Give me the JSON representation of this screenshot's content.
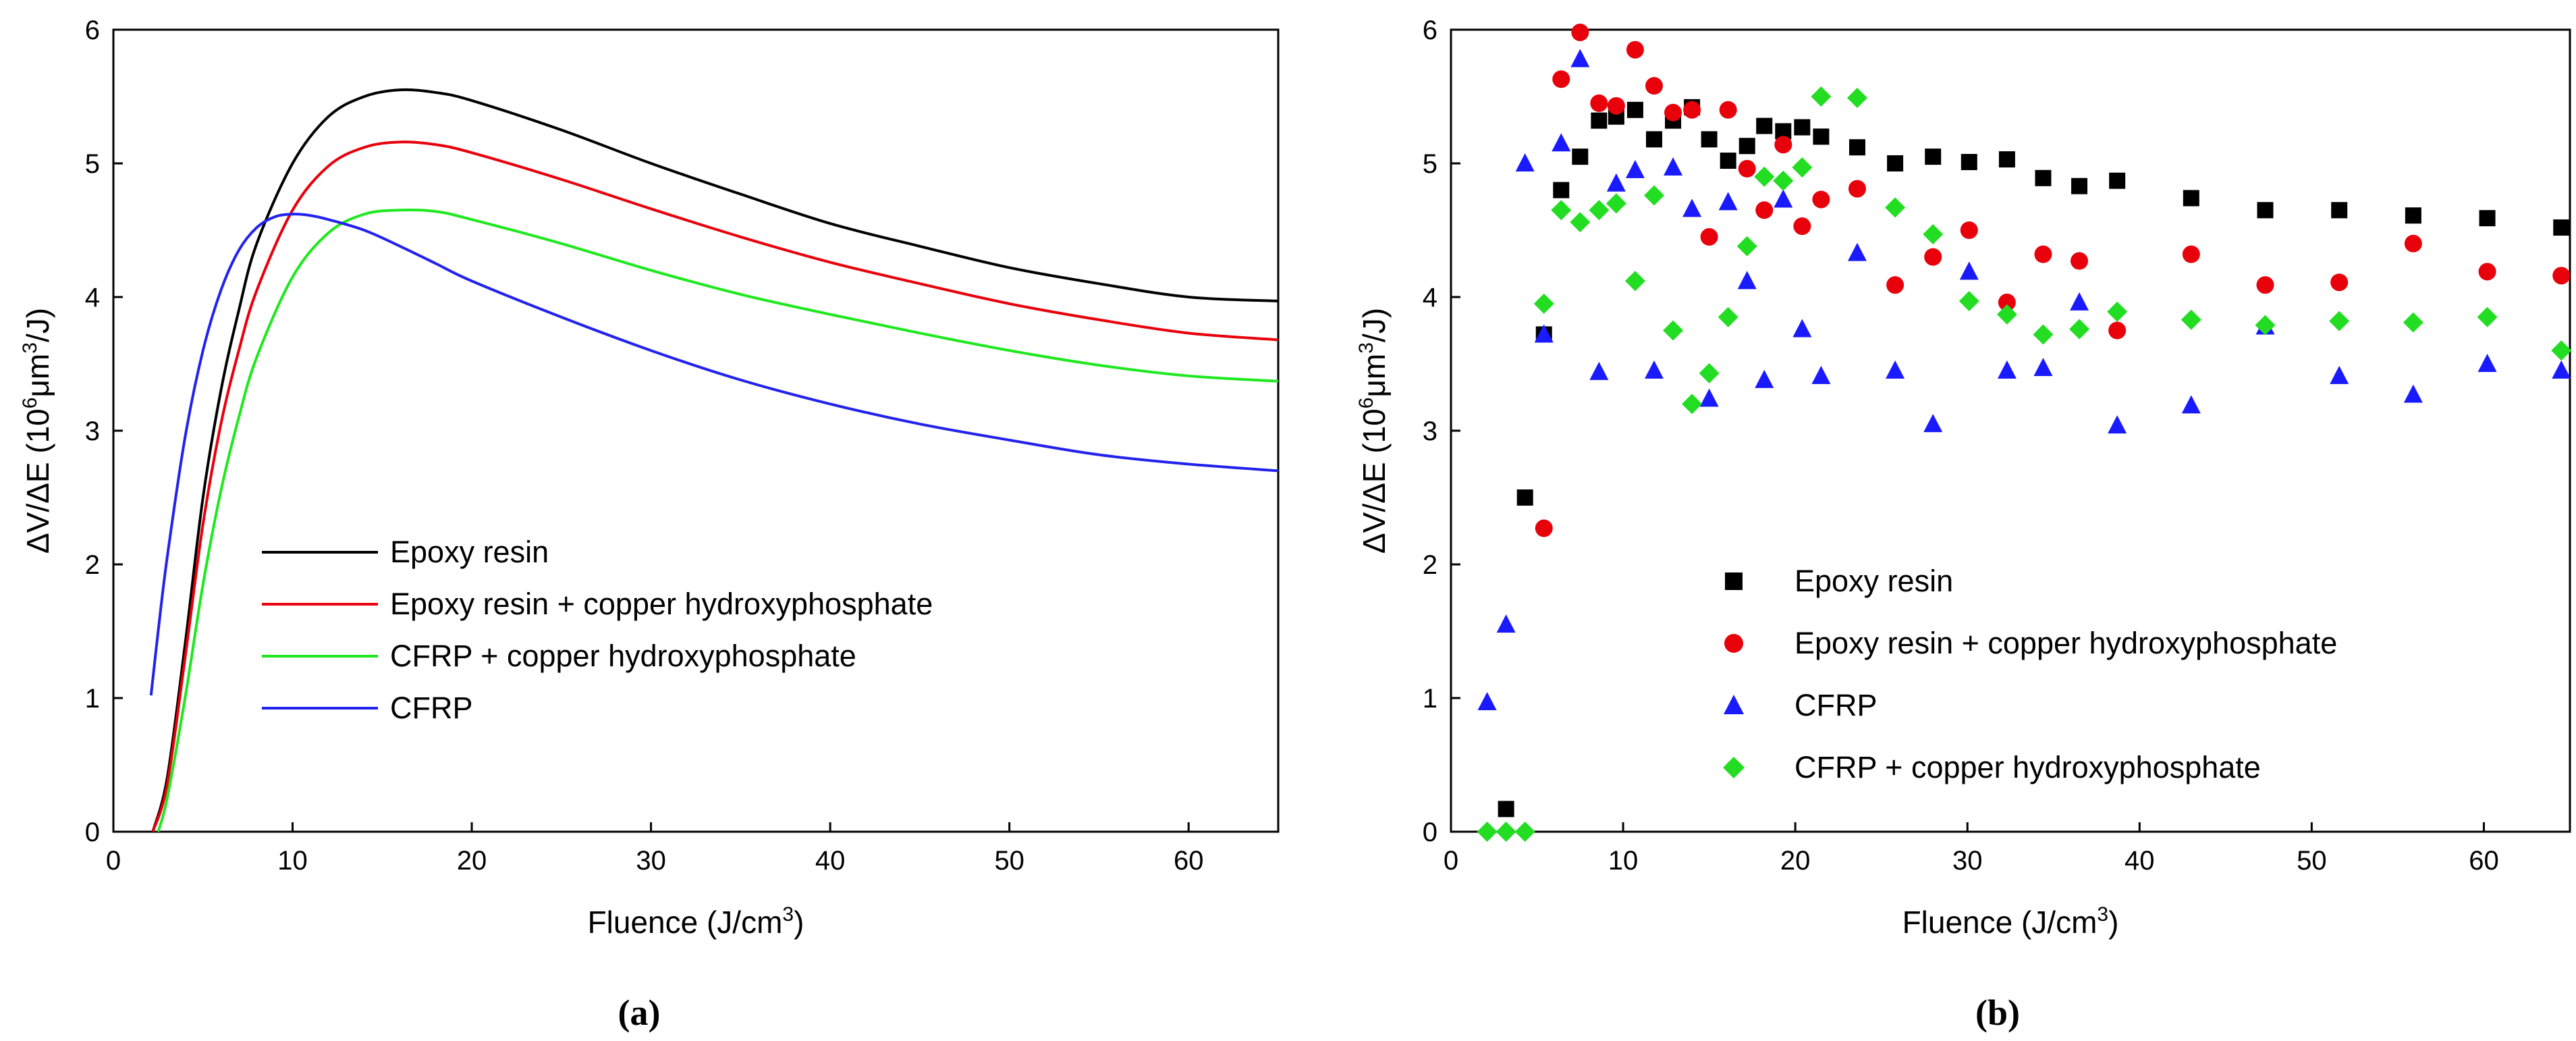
{
  "chart_data": [
    {
      "panel": "a",
      "type": "line",
      "caption": "(a)",
      "xlabel": "Fluence (J/cm",
      "xlabel_sup": "3",
      "xlabel_end": ")",
      "ylabel": "ΔV/ΔE (10",
      "ylabel_sup1": "6",
      "ylabel_mid": "μm",
      "ylabel_sup2": "3",
      "ylabel_end": "/J)",
      "xlim": [
        0,
        65
      ],
      "ylim": [
        0,
        6
      ],
      "xticks": [
        0,
        10,
        20,
        30,
        40,
        50,
        60
      ],
      "yticks": [
        0,
        1,
        2,
        3,
        4,
        5,
        6
      ],
      "legend": [
        "Epoxy resin",
        "Epoxy resin + copper hydroxyphosphate",
        "CFRP + copper hydroxyphosphate",
        "CFRP"
      ],
      "series": [
        {
          "name": "Epoxy resin",
          "color": "#000000",
          "x": [
            2.2,
            3,
            4,
            5,
            6,
            7,
            8,
            10,
            12,
            14,
            16,
            18,
            20,
            25,
            30,
            35,
            40,
            45,
            50,
            55,
            60,
            65
          ],
          "y": [
            0,
            0.4,
            1.4,
            2.5,
            3.3,
            3.9,
            4.4,
            5.0,
            5.35,
            5.5,
            5.55,
            5.53,
            5.47,
            5.25,
            5.0,
            4.77,
            4.55,
            4.38,
            4.22,
            4.1,
            4.0,
            3.97
          ]
        },
        {
          "name": "Epoxy resin + copper hydroxyphosphate",
          "color": "#e8000b",
          "x": [
            2.2,
            3,
            4,
            5,
            6,
            7,
            8,
            10,
            12,
            14,
            16,
            18,
            20,
            25,
            30,
            35,
            40,
            45,
            50,
            55,
            60,
            65
          ],
          "y": [
            0,
            0.35,
            1.3,
            2.3,
            3.05,
            3.6,
            4.05,
            4.65,
            4.98,
            5.12,
            5.16,
            5.14,
            5.08,
            4.88,
            4.66,
            4.45,
            4.26,
            4.1,
            3.95,
            3.83,
            3.73,
            3.68
          ]
        },
        {
          "name": "CFRP + copper hydroxyphosphate",
          "color": "#1ee81e",
          "x": [
            2.5,
            3,
            4,
            5,
            6,
            7,
            8,
            10,
            12,
            14,
            16,
            18,
            20,
            25,
            30,
            35,
            40,
            45,
            50,
            55,
            60,
            65
          ],
          "y": [
            0,
            0.25,
            1.0,
            1.85,
            2.55,
            3.1,
            3.55,
            4.15,
            4.48,
            4.62,
            4.65,
            4.64,
            4.58,
            4.4,
            4.2,
            4.02,
            3.87,
            3.73,
            3.6,
            3.49,
            3.41,
            3.37
          ]
        },
        {
          "name": "CFRP",
          "color": "#2222ee",
          "x": [
            2.1,
            2.5,
            3,
            4,
            5,
            6,
            7,
            8,
            9,
            10,
            11,
            12,
            14,
            16,
            18,
            20,
            25,
            30,
            35,
            40,
            45,
            50,
            55,
            60,
            65
          ],
          "y": [
            1.02,
            1.5,
            2.05,
            2.95,
            3.6,
            4.05,
            4.35,
            4.52,
            4.6,
            4.62,
            4.61,
            4.58,
            4.5,
            4.38,
            4.25,
            4.12,
            3.85,
            3.6,
            3.38,
            3.2,
            3.05,
            2.93,
            2.82,
            2.75,
            2.7
          ]
        }
      ]
    },
    {
      "panel": "b",
      "type": "scatter",
      "caption": "(b)",
      "xlabel": "Fluence (J/cm",
      "xlabel_sup": "3",
      "xlabel_end": ")",
      "ylabel": "ΔV/ΔE (10",
      "ylabel_sup1": "6",
      "ylabel_mid": "μm",
      "ylabel_sup2": "3",
      "ylabel_end": "/J)",
      "xlim": [
        0,
        65
      ],
      "ylim": [
        0,
        6
      ],
      "xticks": [
        0,
        10,
        20,
        30,
        40,
        50,
        60
      ],
      "yticks": [
        0,
        1,
        2,
        3,
        4,
        5,
        6
      ],
      "legend": [
        "Epoxy resin",
        "Epoxy resin + copper hydroxyphosphate",
        "CFRP",
        "CFRP + copper hydroxyphosphate"
      ],
      "series": [
        {
          "name": "Epoxy resin",
          "color": "#000000",
          "marker": "square",
          "points": [
            [
              3.2,
              0.17
            ],
            [
              4.3,
              2.5
            ],
            [
              5.4,
              3.72
            ],
            [
              6.4,
              4.8
            ],
            [
              7.5,
              5.05
            ],
            [
              8.6,
              5.32
            ],
            [
              9.6,
              5.35
            ],
            [
              10.7,
              5.4
            ],
            [
              11.8,
              5.18
            ],
            [
              12.9,
              5.32
            ],
            [
              14.0,
              5.42
            ],
            [
              15.0,
              5.18
            ],
            [
              16.1,
              5.02
            ],
            [
              17.2,
              5.13
            ],
            [
              18.2,
              5.28
            ],
            [
              19.3,
              5.24
            ],
            [
              20.4,
              5.27
            ],
            [
              21.5,
              5.2
            ],
            [
              23.6,
              5.12
            ],
            [
              25.8,
              5.0
            ],
            [
              28.0,
              5.05
            ],
            [
              30.1,
              5.01
            ],
            [
              32.3,
              5.03
            ],
            [
              34.4,
              4.89
            ],
            [
              36.5,
              4.83
            ],
            [
              38.7,
              4.87
            ],
            [
              43.0,
              4.74
            ],
            [
              47.3,
              4.65
            ],
            [
              51.6,
              4.65
            ],
            [
              55.9,
              4.61
            ],
            [
              60.2,
              4.59
            ],
            [
              64.5,
              4.52
            ]
          ]
        },
        {
          "name": "Epoxy resin + copper hydroxyphosphate",
          "color": "#e8000b",
          "marker": "circle",
          "points": [
            [
              5.4,
              2.27
            ],
            [
              6.4,
              5.63
            ],
            [
              7.5,
              5.98
            ],
            [
              8.6,
              5.45
            ],
            [
              9.6,
              5.43
            ],
            [
              10.7,
              5.85
            ],
            [
              11.8,
              5.58
            ],
            [
              12.9,
              5.38
            ],
            [
              14.0,
              5.4
            ],
            [
              15.0,
              4.45
            ],
            [
              16.1,
              5.4
            ],
            [
              17.2,
              4.96
            ],
            [
              18.2,
              4.65
            ],
            [
              19.3,
              5.14
            ],
            [
              20.4,
              4.53
            ],
            [
              21.5,
              4.73
            ],
            [
              23.6,
              4.81
            ],
            [
              25.8,
              4.09
            ],
            [
              28.0,
              4.3
            ],
            [
              30.1,
              4.5
            ],
            [
              32.3,
              3.96
            ],
            [
              34.4,
              4.32
            ],
            [
              36.5,
              4.27
            ],
            [
              38.7,
              3.75
            ],
            [
              43.0,
              4.32
            ],
            [
              47.3,
              4.09
            ],
            [
              51.6,
              4.11
            ],
            [
              55.9,
              4.4
            ],
            [
              60.2,
              4.19
            ],
            [
              64.5,
              4.16
            ]
          ]
        },
        {
          "name": "CFRP",
          "color": "#1a1aff",
          "marker": "triangle",
          "points": [
            [
              2.1,
              0.97
            ],
            [
              3.2,
              1.55
            ],
            [
              4.3,
              5.0
            ],
            [
              5.4,
              3.72
            ],
            [
              6.4,
              5.15
            ],
            [
              7.5,
              5.78
            ],
            [
              8.6,
              3.44
            ],
            [
              9.6,
              4.85
            ],
            [
              10.7,
              4.95
            ],
            [
              11.8,
              3.45
            ],
            [
              12.9,
              4.97
            ],
            [
              14.0,
              4.66
            ],
            [
              15.0,
              3.24
            ],
            [
              16.1,
              4.71
            ],
            [
              17.2,
              4.12
            ],
            [
              18.2,
              3.38
            ],
            [
              19.3,
              4.73
            ],
            [
              20.4,
              3.76
            ],
            [
              21.5,
              3.41
            ],
            [
              23.6,
              4.33
            ],
            [
              25.8,
              3.45
            ],
            [
              28.0,
              3.05
            ],
            [
              30.1,
              4.19
            ],
            [
              32.3,
              3.45
            ],
            [
              34.4,
              3.47
            ],
            [
              36.5,
              3.96
            ],
            [
              38.7,
              3.04
            ],
            [
              43.0,
              3.19
            ],
            [
              47.3,
              3.78
            ],
            [
              51.6,
              3.41
            ],
            [
              55.9,
              3.27
            ],
            [
              60.2,
              3.5
            ],
            [
              64.5,
              3.45
            ]
          ]
        },
        {
          "name": "CFRP + copper hydroxyphosphate",
          "color": "#22dd22",
          "marker": "diamond",
          "points": [
            [
              2.1,
              0.0
            ],
            [
              3.2,
              0.0
            ],
            [
              4.3,
              0.0
            ],
            [
              5.4,
              3.95
            ],
            [
              6.4,
              4.65
            ],
            [
              7.5,
              4.56
            ],
            [
              8.6,
              4.65
            ],
            [
              9.6,
              4.7
            ],
            [
              10.7,
              4.12
            ],
            [
              11.8,
              4.76
            ],
            [
              12.9,
              3.75
            ],
            [
              14.0,
              3.2
            ],
            [
              15.0,
              3.43
            ],
            [
              16.1,
              3.85
            ],
            [
              17.2,
              4.38
            ],
            [
              18.2,
              4.9
            ],
            [
              19.3,
              4.87
            ],
            [
              20.4,
              4.97
            ],
            [
              21.5,
              5.5
            ],
            [
              23.6,
              5.49
            ],
            [
              25.8,
              4.67
            ],
            [
              28.0,
              4.47
            ],
            [
              30.1,
              3.97
            ],
            [
              32.3,
              3.87
            ],
            [
              34.4,
              3.72
            ],
            [
              36.5,
              3.76
            ],
            [
              38.7,
              3.89
            ],
            [
              43.0,
              3.83
            ],
            [
              47.3,
              3.79
            ],
            [
              51.6,
              3.82
            ],
            [
              55.9,
              3.81
            ],
            [
              60.2,
              3.85
            ],
            [
              64.5,
              3.6
            ]
          ]
        }
      ]
    }
  ]
}
